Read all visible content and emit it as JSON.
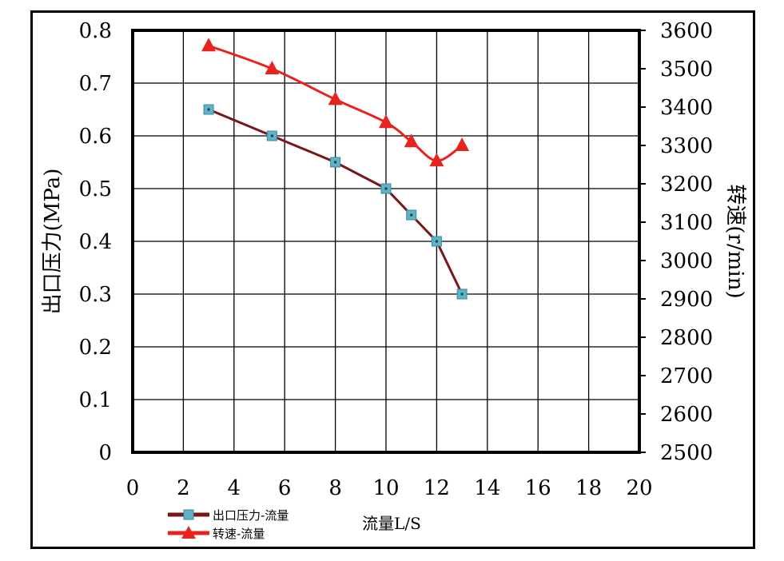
{
  "chart_data": {
    "type": "line",
    "xlabel": "流量L/S",
    "ylabel_left": "出口压力(MPa)",
    "ylabel_right": "转速(r/min)",
    "xlim": [
      0,
      20
    ],
    "ylim_left": [
      0,
      0.8
    ],
    "ylim_right": [
      2500,
      3600
    ],
    "x_ticks": [
      "0",
      "2",
      "4",
      "6",
      "8",
      "10",
      "12",
      "14",
      "16",
      "18",
      "20"
    ],
    "y_left_ticks": [
      "0",
      "0.1",
      "0.2",
      "0.3",
      "0.4",
      "0.5",
      "0.6",
      "0.7",
      "0.8"
    ],
    "y_right_ticks": [
      "2500",
      "2600",
      "2700",
      "2800",
      "2900",
      "3000",
      "3100",
      "3200",
      "3300",
      "3400",
      "3500",
      "3600"
    ],
    "grid": true,
    "legend_position": "bottom-left",
    "series": [
      {
        "name": "出口压力-流量",
        "axis": "left",
        "color": "#7b1618",
        "marker": "square",
        "marker_color": "#5fb3c8",
        "x": [
          3,
          5.5,
          8,
          10,
          11,
          12,
          13
        ],
        "y": [
          0.65,
          0.6,
          0.55,
          0.5,
          0.45,
          0.4,
          0.3
        ]
      },
      {
        "name": "转速-流量",
        "axis": "right",
        "color": "#e8231f",
        "marker": "triangle",
        "marker_color": "#e8231f",
        "x": [
          3,
          5.5,
          8,
          10,
          11,
          12,
          13
        ],
        "y": [
          3560,
          3500,
          3420,
          3360,
          3310,
          3260,
          3300
        ]
      }
    ]
  }
}
